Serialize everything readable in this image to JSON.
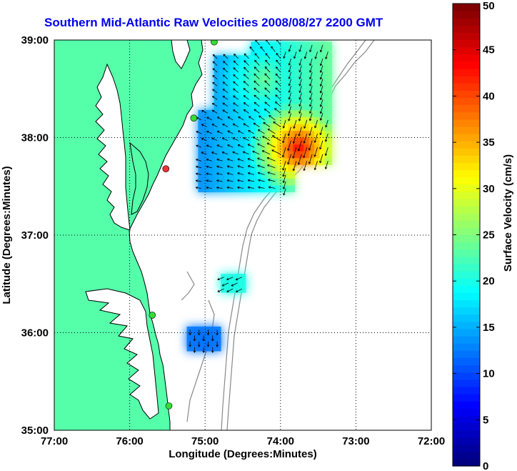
{
  "title": "Southern Mid-Atlantic Raw Velocities 2008/08/27 2200 GMT",
  "map": {
    "x_label": "Longitude (Degrees:Minutes)",
    "y_label": "Latitude (Degrees:Minutes)",
    "x_range": [
      -77,
      -72
    ],
    "y_range": [
      35,
      39
    ],
    "x_ticks": [
      {
        "value": -77,
        "label": "77:00"
      },
      {
        "value": -76,
        "label": "76:00"
      },
      {
        "value": -75,
        "label": "75:00"
      },
      {
        "value": -74,
        "label": "74:00"
      },
      {
        "value": -73,
        "label": "73:00"
      },
      {
        "value": -72,
        "label": "72:00"
      }
    ],
    "y_ticks": [
      {
        "value": 35,
        "label": "35:00"
      },
      {
        "value": 36,
        "label": "36:00"
      },
      {
        "value": 37,
        "label": "37:00"
      },
      {
        "value": 38,
        "label": "38:00"
      },
      {
        "value": 39,
        "label": "39:00"
      }
    ],
    "land_color": "#55ffaa",
    "grid": "dotted",
    "stations": [
      {
        "lon": -74.88,
        "lat": 38.98,
        "color": "#33dd33"
      },
      {
        "lon": -75.15,
        "lat": 38.2,
        "color": "#33dd33"
      },
      {
        "lon": -75.52,
        "lat": 37.68,
        "color": "#ee3333"
      },
      {
        "lon": -75.7,
        "lat": 36.18,
        "color": "#33dd33"
      },
      {
        "lon": -75.48,
        "lat": 35.25,
        "color": "#33dd33"
      }
    ]
  },
  "colorbar": {
    "label": "Surface Velocity (cm/s)",
    "min": 0,
    "max": 50,
    "ticks": [
      "0",
      "5",
      "10",
      "15",
      "20",
      "25",
      "30",
      "35",
      "40",
      "45",
      "50"
    ],
    "colormap": "jet"
  }
}
